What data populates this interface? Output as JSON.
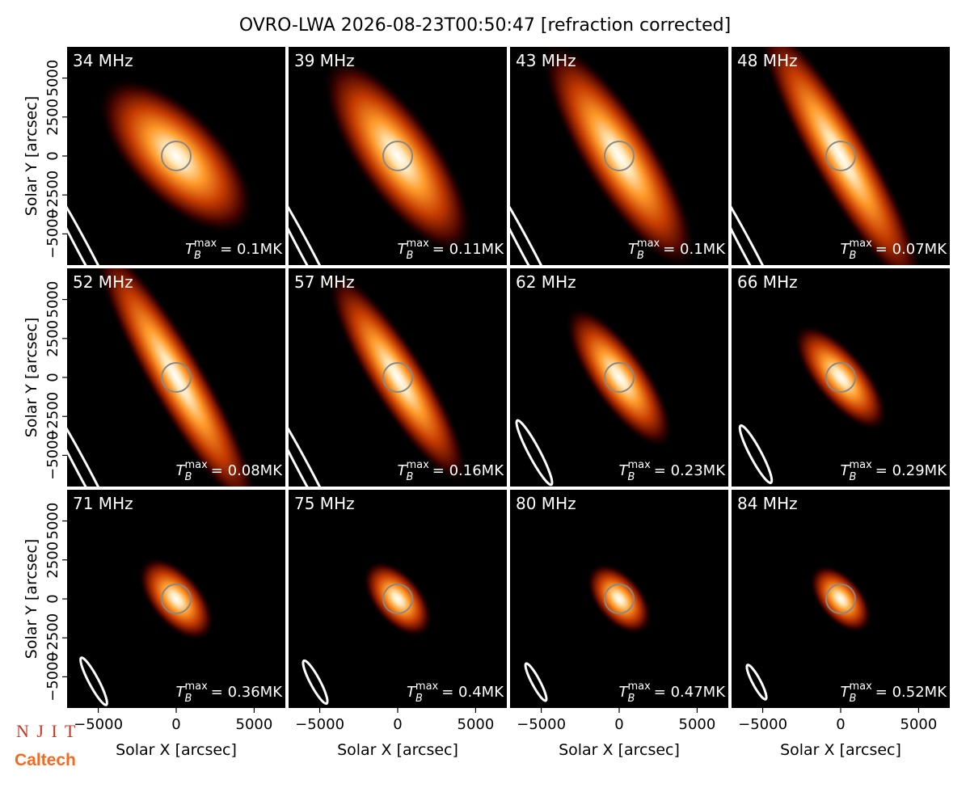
{
  "chart_data": {
    "type": "image",
    "title": "OVRO-LWA 2026-08-23T00:50:47 [refraction corrected]",
    "xlabel": "Solar X [arcsec]",
    "ylabel": "Solar Y [arcsec]",
    "categories": [
      "34 MHz",
      "39 MHz",
      "43 MHz",
      "48 MHz",
      "52 MHz",
      "57 MHz",
      "62 MHz",
      "66 MHz",
      "71 MHz",
      "75 MHz",
      "80 MHz",
      "84 MHz"
    ],
    "values": [
      0.1,
      0.11,
      0.1,
      0.07,
      0.08,
      0.16,
      0.23,
      0.29,
      0.36,
      0.4,
      0.47,
      0.52
    ],
    "value_labels": [
      "= 0.1MK",
      "= 0.11MK",
      "= 0.1MK",
      "= 0.07MK",
      "= 0.08MK",
      "= 0.16MK",
      "= 0.23MK",
      "= 0.29MK",
      "= 0.36MK",
      "= 0.4MK",
      "= 0.47MK",
      "= 0.52MK"
    ],
    "label_symbol": "T",
    "label_subscript": "B",
    "label_superscript": "max",
    "xlim": [
      -7000,
      7000
    ],
    "ylim": [
      -7000,
      7000
    ],
    "xticks": [
      {
        "value": -5000,
        "label": "−5000"
      },
      0,
      5000
    ],
    "yticks": [
      {
        "value": -5000,
        "label": "−5000"
      },
      {
        "value": -2500,
        "label": "−2500"
      },
      0,
      2500,
      5000
    ]
  },
  "logos": {
    "njit": "N J I T",
    "caltech": "Caltech"
  }
}
